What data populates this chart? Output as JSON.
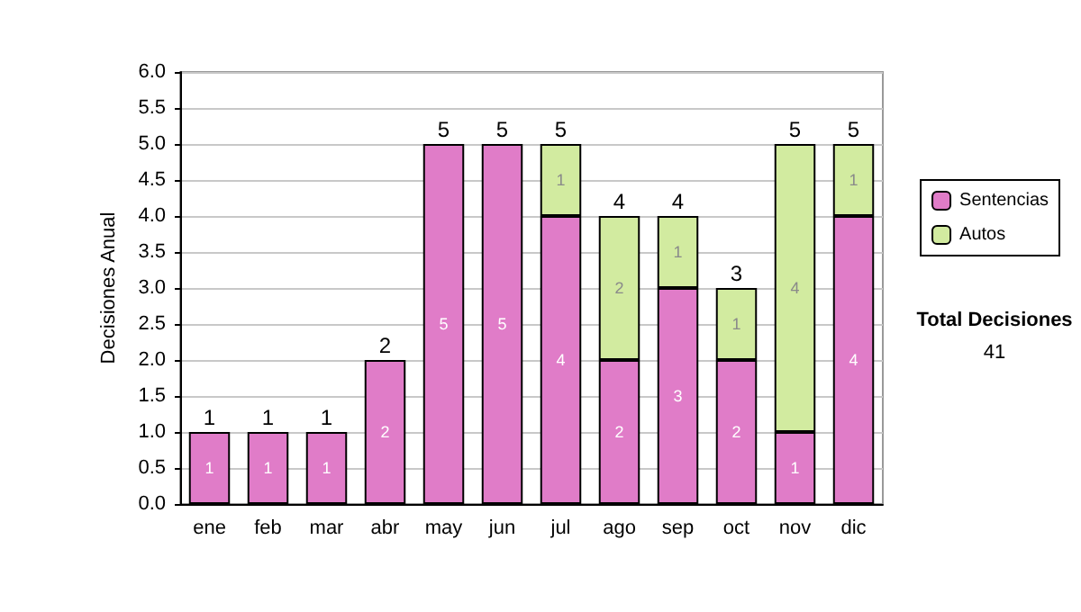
{
  "chart_data": {
    "type": "bar",
    "stacked": true,
    "ylabel": "Decisiones Anual",
    "categories": [
      "ene",
      "feb",
      "mar",
      "abr",
      "may",
      "jun",
      "jul",
      "ago",
      "sep",
      "oct",
      "nov",
      "dic"
    ],
    "series": [
      {
        "name": "Sentencias",
        "color": "#e07cc8",
        "values": [
          1,
          1,
          1,
          2,
          5,
          5,
          4,
          2,
          3,
          2,
          1,
          4
        ]
      },
      {
        "name": "Autos",
        "color": "#d2eba0",
        "values": [
          null,
          null,
          null,
          null,
          null,
          null,
          1,
          2,
          1,
          1,
          4,
          1
        ]
      }
    ],
    "totals": [
      "1",
      "1",
      "1",
      "2",
      "5",
      "5",
      "5",
      "4",
      "4",
      "3",
      "5",
      "5"
    ],
    "ylim": [
      0,
      6
    ],
    "yticks": [
      {
        "value": 0,
        "label": "0.0"
      },
      {
        "value": 0.5,
        "label": "0.5"
      },
      {
        "value": 1,
        "label": "1.0"
      },
      {
        "value": 1.5,
        "label": "1.5"
      },
      {
        "value": 2,
        "label": "2.0"
      },
      {
        "value": 2.5,
        "label": "2.5"
      },
      {
        "value": 3,
        "label": "3.0"
      },
      {
        "value": 3.5,
        "label": "3.5"
      },
      {
        "value": 4,
        "label": "4.0"
      },
      {
        "value": 4.5,
        "label": "4.5"
      },
      {
        "value": 5,
        "label": "5.0"
      },
      {
        "value": 5.5,
        "label": "5.5"
      },
      {
        "value": 6,
        "label": "6.0"
      }
    ],
    "grid": "y",
    "legend": "right",
    "data_labels": true,
    "annotations": [
      "Total Decisiones",
      "41"
    ]
  }
}
